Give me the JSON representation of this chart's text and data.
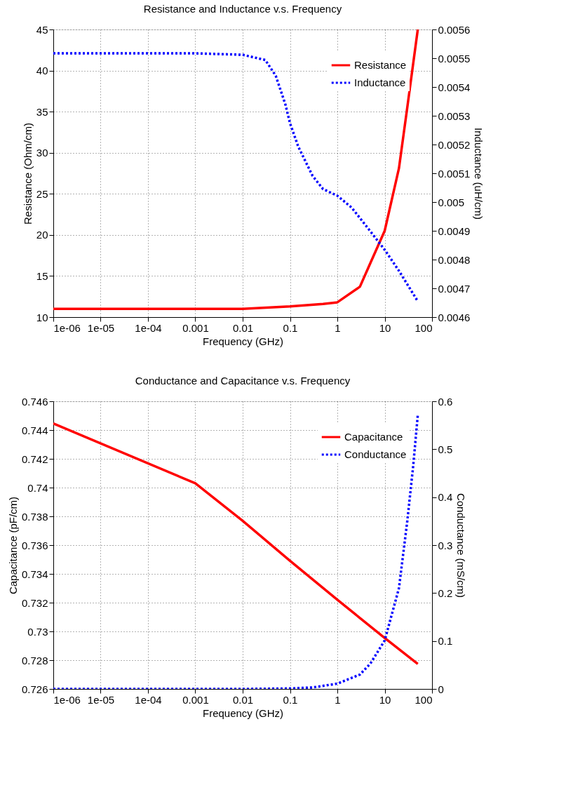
{
  "chart_data": [
    {
      "type": "line",
      "title": "Resistance and Inductance v.s. Frequency",
      "xlabel": "Frequency (GHz)",
      "ylabel": "Resistance (Ohm/cm)",
      "y2label": "Inductance (uH/cm)",
      "log": "x",
      "grid": true,
      "legend": "top right",
      "xlim": [
        1e-06,
        100
      ],
      "xticks": [
        {
          "value": 1e-06,
          "label": "1e-06"
        },
        {
          "value": 1e-05,
          "label": "1e-05"
        },
        {
          "value": 0.0001,
          "label": "1e-04"
        },
        0.001,
        0.01,
        0.1,
        1,
        10,
        100
      ],
      "ylim": [
        10,
        45
      ],
      "yticks": [
        10,
        15,
        20,
        25,
        30,
        35,
        40,
        45
      ],
      "y2lim": [
        0.0046,
        0.0056
      ],
      "y2ticks": [
        0.0046,
        0.0047,
        0.0048,
        0.0049,
        0.005,
        0.0051,
        0.0052,
        0.0053,
        0.0054,
        0.0055,
        0.0056
      ],
      "series": [
        {
          "name": "Resistance",
          "color": "#ff0000",
          "line_style": "solid",
          "x": [
            1e-06,
            0.0001,
            0.01,
            0.1,
            0.5,
            1,
            3,
            5,
            10,
            20,
            30,
            50
          ],
          "values": [
            11,
            11,
            11,
            11.3,
            11.6,
            11.8,
            13.7,
            16.6,
            20.5,
            28.1,
            35.5,
            45
          ]
        },
        {
          "name": "Inductance",
          "color": "#0000ff",
          "line_style": "dotted",
          "axis": "y2",
          "x": [
            1e-06,
            0.001,
            0.01,
            0.03,
            0.05,
            0.08,
            0.1,
            0.15,
            0.3,
            0.5,
            1,
            2,
            5,
            10,
            20,
            50
          ],
          "values": [
            0.005517,
            0.005517,
            0.005512,
            0.005494,
            0.005439,
            0.005339,
            0.005274,
            0.005192,
            0.005091,
            0.005045,
            0.005022,
            0.004981,
            0.004898,
            0.004834,
            0.004761,
            0.004655
          ]
        }
      ]
    },
    {
      "type": "line",
      "title": "Conductance and Capacitance v.s. Frequency",
      "xlabel": "Frequency (GHz)",
      "ylabel": "Capacitance (pF/cm)",
      "y2label": "Conductance (mS/cm)",
      "log": "x",
      "grid": true,
      "legend": "top right",
      "xlim": [
        1e-06,
        100
      ],
      "xticks": [
        {
          "value": 1e-06,
          "label": "1e-06"
        },
        {
          "value": 1e-05,
          "label": "1e-05"
        },
        {
          "value": 0.0001,
          "label": "1e-04"
        },
        0.001,
        0.01,
        0.1,
        1,
        10,
        100
      ],
      "ylim": [
        0.726,
        0.746
      ],
      "yticks": [
        0.726,
        0.728,
        0.73,
        0.732,
        0.734,
        0.736,
        0.738,
        0.74,
        0.742,
        0.744,
        0.746
      ],
      "y2lim": [
        0,
        0.6
      ],
      "y2ticks": [
        0,
        0.1,
        0.2,
        0.3,
        0.4,
        0.5,
        0.6
      ],
      "series": [
        {
          "name": "Capacitance",
          "color": "#ff0000",
          "line_style": "solid",
          "x": [
            1e-06,
            0.001,
            0.01,
            0.1,
            1,
            10,
            50
          ],
          "values": [
            0.74446,
            0.7403,
            0.73769,
            0.73491,
            0.7322,
            0.72954,
            0.72774
          ]
        },
        {
          "name": "Conductance",
          "color": "#0000ff",
          "line_style": "dotted",
          "axis": "y2",
          "x": [
            1e-06,
            0.01,
            0.1,
            0.3,
            1,
            3,
            5,
            10,
            20,
            30,
            40,
            50
          ],
          "values": [
            0,
            0,
            0.001,
            0.003,
            0.011,
            0.03,
            0.053,
            0.101,
            0.21,
            0.35,
            0.465,
            0.571
          ]
        }
      ]
    }
  ]
}
